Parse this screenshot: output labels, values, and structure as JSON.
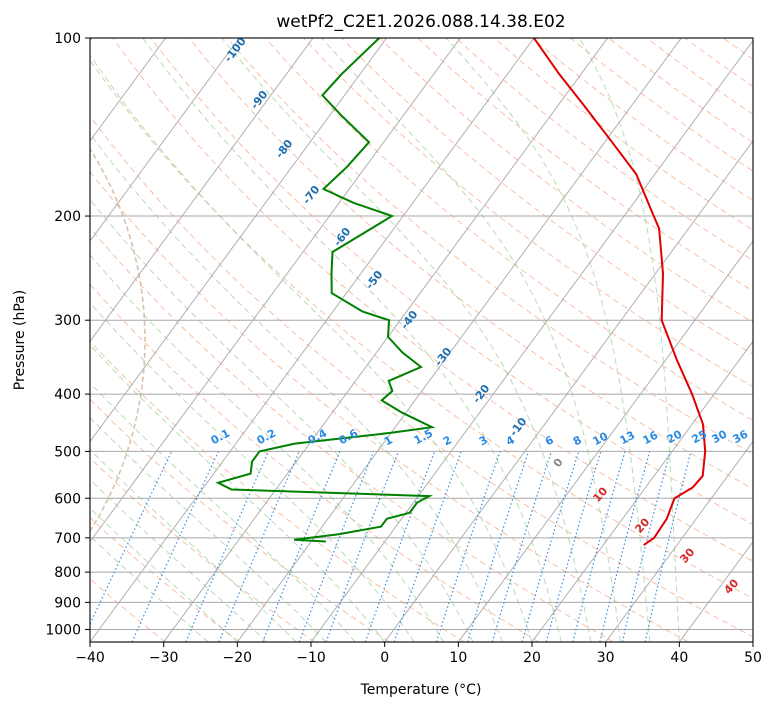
{
  "chart_data": {
    "type": "line",
    "subtype": "skew-t log-p diagram",
    "title": "wetPf2_C2E1.2026.088.14.38.E02",
    "xlabel": "Temperature (°C)",
    "ylabel": "Pressure (hPa)",
    "xlim": [
      -40,
      50
    ],
    "ylim": [
      1050,
      100
    ],
    "x_ticks": [
      -40,
      -30,
      -20,
      -10,
      0,
      10,
      20,
      30,
      40,
      50
    ],
    "x_tick_labels": [
      "−40",
      "−30",
      "−20",
      "−10",
      "0",
      "10",
      "20",
      "30",
      "40",
      "50"
    ],
    "y_ticks": [
      100,
      200,
      300,
      400,
      500,
      600,
      700,
      800,
      900,
      1000
    ],
    "y_tick_labels": [
      "100",
      "200",
      "300",
      "400",
      "500",
      "600",
      "700",
      "800",
      "900",
      "1000"
    ],
    "grid": true,
    "colors": {
      "temperature": "#e00000",
      "dewpoint": "#008000",
      "isotherm": "#a8a8a8",
      "dry_adiabat": "#f4a582",
      "moist_adiabat": "#9fd09f",
      "mixing_ratio": "#3a8ee0",
      "dry_adiabat_label": "#d62728",
      "mixing_label": "#2a8ae6",
      "hodo_ring": "#c8a888"
    },
    "series": [
      {
        "name": "Temperature",
        "points": [
          {
            "p": 720,
            "t": 25.5
          },
          {
            "p": 700,
            "t": 26.2
          },
          {
            "p": 650,
            "t": 26.0
          },
          {
            "p": 600,
            "t": 25.0
          },
          {
            "p": 575,
            "t": 26.4
          },
          {
            "p": 550,
            "t": 26.6
          },
          {
            "p": 500,
            "t": 24.5
          },
          {
            "p": 450,
            "t": 21.5
          },
          {
            "p": 400,
            "t": 17.0
          },
          {
            "p": 350,
            "t": 11.5
          },
          {
            "p": 300,
            "t": 5.5
          },
          {
            "p": 250,
            "t": 1.0
          },
          {
            "p": 210,
            "t": -4.0
          },
          {
            "p": 195,
            "t": -7.0
          },
          {
            "p": 170,
            "t": -12.5
          },
          {
            "p": 150,
            "t": -19.0
          },
          {
            "p": 130,
            "t": -26.5
          },
          {
            "p": 115,
            "t": -33.0
          },
          {
            "p": 100,
            "t": -40.0
          }
        ]
      },
      {
        "name": "Dewpoint",
        "points": [
          {
            "p": 710,
            "t": -18.0
          },
          {
            "p": 705,
            "t": -22.5
          },
          {
            "p": 690,
            "t": -17.0
          },
          {
            "p": 670,
            "t": -12.0
          },
          {
            "p": 650,
            "t": -12.0
          },
          {
            "p": 635,
            "t": -9.5
          },
          {
            "p": 610,
            "t": -9.5
          },
          {
            "p": 595,
            "t": -8.5
          },
          {
            "p": 580,
            "t": -36.0
          },
          {
            "p": 565,
            "t": -38.5
          },
          {
            "p": 545,
            "t": -35.0
          },
          {
            "p": 520,
            "t": -36.0
          },
          {
            "p": 500,
            "t": -36.0
          },
          {
            "p": 485,
            "t": -32.0
          },
          {
            "p": 465,
            "t": -20.0
          },
          {
            "p": 455,
            "t": -15.0
          },
          {
            "p": 430,
            "t": -20.5
          },
          {
            "p": 410,
            "t": -24.5
          },
          {
            "p": 395,
            "t": -24.0
          },
          {
            "p": 380,
            "t": -25.5
          },
          {
            "p": 360,
            "t": -22.5
          },
          {
            "p": 340,
            "t": -26.5
          },
          {
            "p": 320,
            "t": -30.0
          },
          {
            "p": 300,
            "t": -31.5
          },
          {
            "p": 290,
            "t": -36.0
          },
          {
            "p": 270,
            "t": -42.0
          },
          {
            "p": 250,
            "t": -44.0
          },
          {
            "p": 230,
            "t": -46.0
          },
          {
            "p": 200,
            "t": -41.5
          },
          {
            "p": 190,
            "t": -48.0
          },
          {
            "p": 180,
            "t": -53.5
          },
          {
            "p": 165,
            "t": -52.5
          },
          {
            "p": 150,
            "t": -52.0
          },
          {
            "p": 135,
            "t": -58.5
          },
          {
            "p": 125,
            "t": -63.0
          },
          {
            "p": 115,
            "t": -62.5
          },
          {
            "p": 100,
            "t": -61.0
          }
        ]
      }
    ],
    "moist_adiabat_labels": [
      "-100",
      "-90",
      "-80",
      "-70",
      "-60",
      "-50",
      "-40",
      "-30",
      "-20",
      "-10",
      "0"
    ],
    "dry_adiabat_labels": [
      "10",
      "20",
      "30",
      "40"
    ],
    "mixing_ratio_labels": [
      "0.1",
      "0.2",
      "0.4",
      "0.6",
      "1",
      "1.5",
      "2",
      "3",
      "4",
      "6",
      "8",
      "10",
      "13",
      "16",
      "20",
      "25",
      "30",
      "36"
    ]
  }
}
